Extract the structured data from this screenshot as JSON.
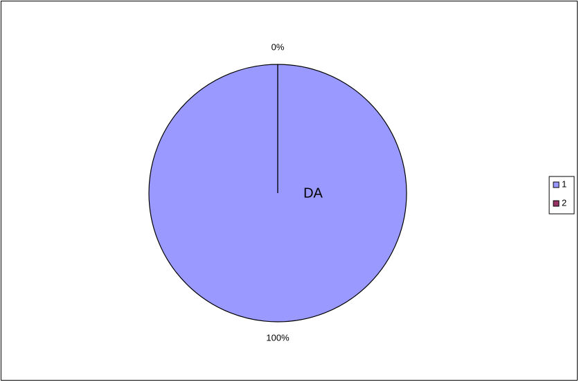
{
  "chart_data": {
    "type": "pie",
    "categories": [
      "1",
      "2"
    ],
    "values": [
      100,
      0
    ],
    "value_labels": [
      "100%",
      "0%"
    ],
    "colors": [
      "#9999ff",
      "#993366"
    ],
    "annotation": "DA",
    "legend": "right"
  }
}
